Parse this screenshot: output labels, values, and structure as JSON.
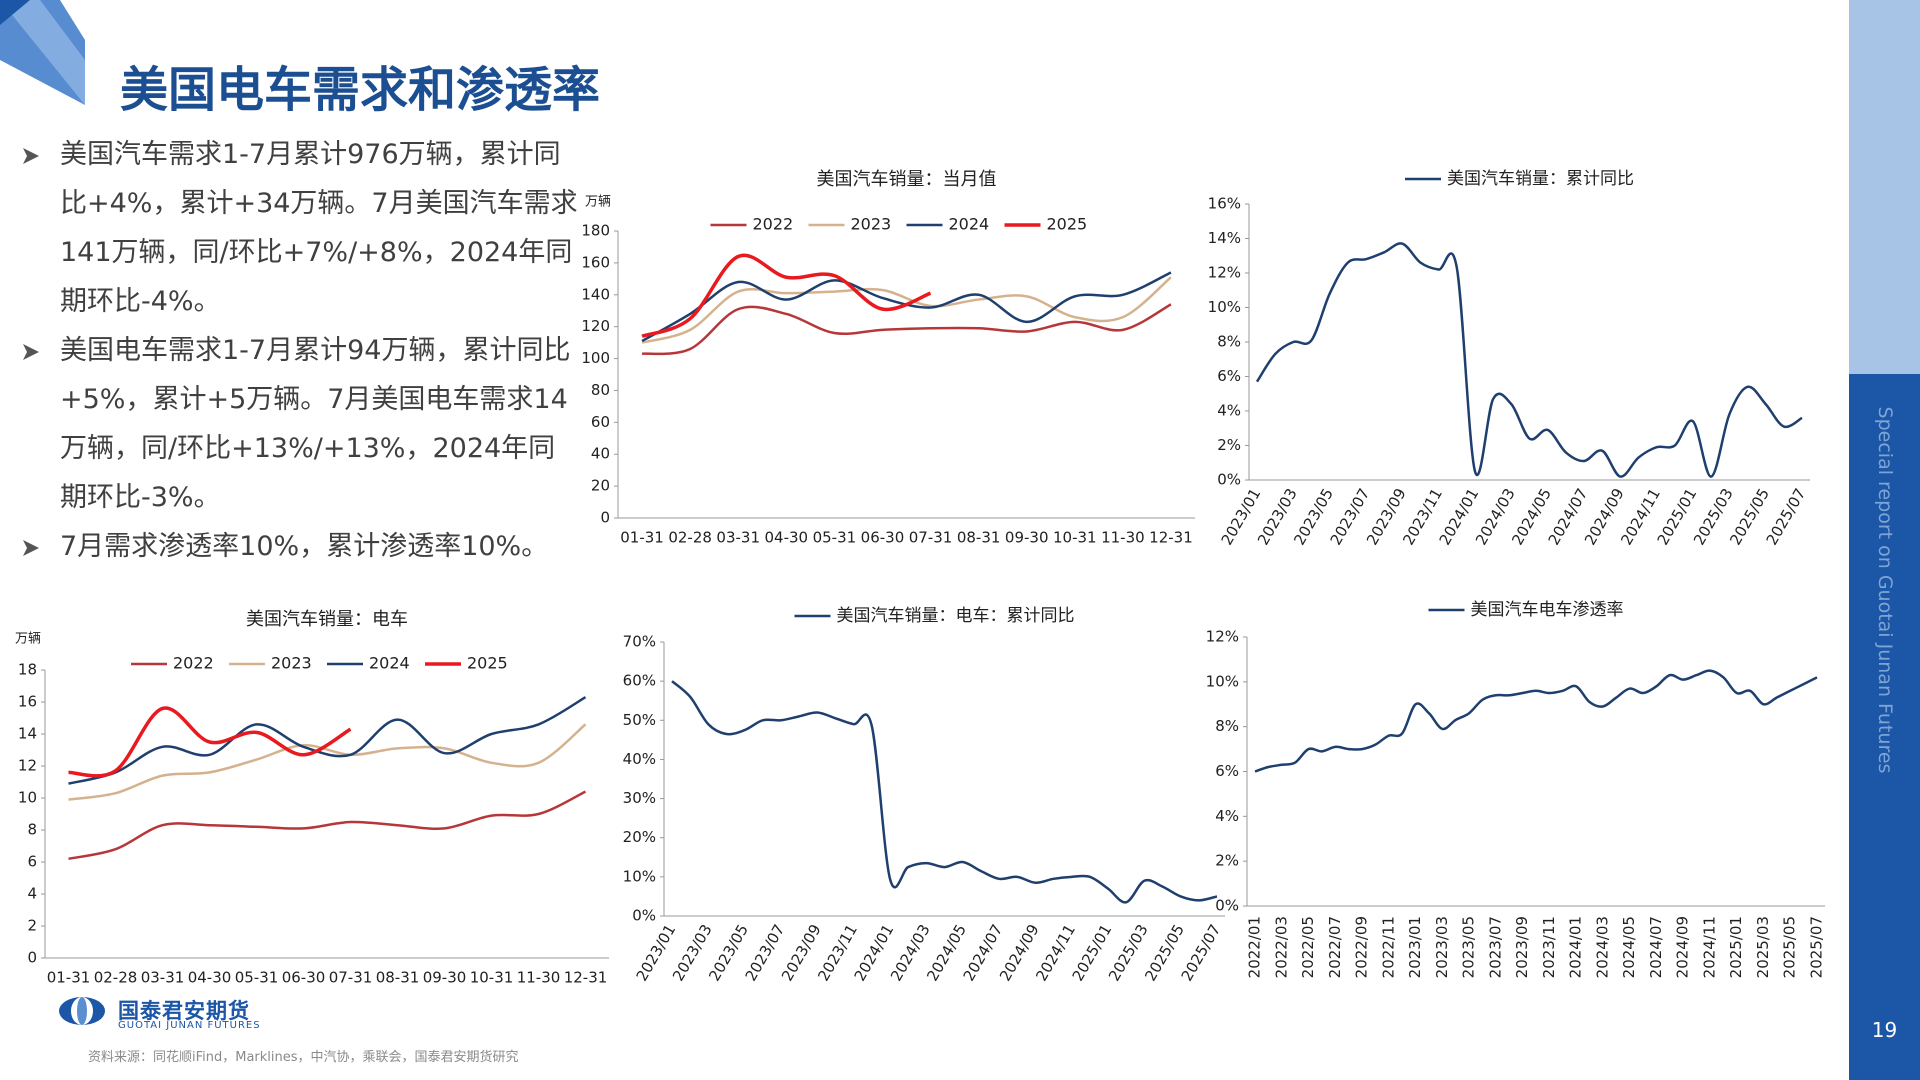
{
  "header": {
    "title": "美国电车需求和渗透率"
  },
  "bullets": [
    "美国汽车需求1-7月累计976万辆，累计同比+4%，累计+34万辆。7月美国汽车需求141万辆，同/环比+7%/+8%，2024年同期环比-4%。",
    "美国电车需求1-7月累计94万辆，累计同比+5%，累计+5万辆。7月美国电车需求14万辆，同/环比+13%/+13%，2024年同期环比-3%。",
    "7月需求渗透率10%，累计渗透率10%。"
  ],
  "chart_data": [
    {
      "type": "line",
      "title": "美国汽车销量：当月值",
      "y_label": "万辆",
      "legend": "top",
      "categories": [
        "01-31",
        "02-28",
        "03-31",
        "04-30",
        "05-31",
        "06-30",
        "07-31",
        "08-31",
        "09-30",
        "10-31",
        "11-30",
        "12-31"
      ],
      "series": [
        {
          "name": "2022",
          "color": "#b5373a",
          "values": [
            103,
            106,
            131,
            128,
            116,
            118,
            119,
            119,
            117,
            123,
            118,
            134
          ]
        },
        {
          "name": "2023",
          "color": "#d5b28e",
          "values": [
            110,
            118,
            142,
            141,
            142,
            143,
            133,
            137,
            139,
            126,
            126,
            151
          ]
        },
        {
          "name": "2024",
          "color": "#1f3f6e",
          "values": [
            111,
            128,
            148,
            137,
            149,
            138,
            132,
            140,
            123,
            139,
            140,
            154
          ]
        },
        {
          "name": "2025",
          "color": "#e8191f",
          "values": [
            114,
            125,
            164,
            151,
            152,
            131,
            141,
            null,
            null,
            null,
            null,
            null
          ]
        }
      ],
      "ylim": [
        0,
        180
      ],
      "yticks": [
        0,
        20,
        40,
        60,
        80,
        100,
        120,
        140,
        160,
        180
      ]
    },
    {
      "type": "line",
      "legend": "top",
      "categories": [
        "2023/01",
        null,
        "2023/03",
        null,
        "2023/05",
        null,
        "2023/07",
        null,
        "2023/09",
        null,
        "2023/11",
        null,
        "2024/01",
        null,
        "2024/03",
        null,
        "2024/05",
        null,
        "2024/07",
        null,
        "2024/09",
        null,
        "2024/11",
        null,
        "2025/01",
        null,
        "2025/03",
        null,
        "2025/05",
        null,
        "2025/07"
      ],
      "series": [
        {
          "name": "美国汽车销量：累计同比",
          "color": "#1f3f6e",
          "values": [
            5.7,
            7.3,
            8.0,
            8.1,
            10.8,
            12.6,
            12.8,
            13.2,
            13.7,
            12.6,
            12.2,
            12.3,
            0.5,
            4.7,
            4.4,
            2.4,
            2.9,
            1.6,
            1.1,
            1.7,
            0.2,
            1.3,
            1.9,
            2.0,
            3.4,
            0.2,
            3.8,
            5.4,
            4.4,
            3.1,
            3.6
          ]
        }
      ],
      "ylim": [
        0,
        16
      ],
      "yticks": [
        {
          "value": 0,
          "label": "0%"
        },
        {
          "value": 2,
          "label": "2%"
        },
        {
          "value": 4,
          "label": "4%"
        },
        {
          "value": 6,
          "label": "6%"
        },
        {
          "value": 8,
          "label": "8%"
        },
        {
          "value": 10,
          "label": "10%"
        },
        {
          "value": 12,
          "label": "12%"
        },
        {
          "value": 14,
          "label": "14%"
        },
        {
          "value": 16,
          "label": "16%"
        }
      ]
    },
    {
      "type": "line",
      "title": "美国汽车销量：电车",
      "y_label": "万辆",
      "legend": "top",
      "categories": [
        "01-31",
        "02-28",
        "03-31",
        "04-30",
        "05-31",
        "06-30",
        "07-31",
        "08-31",
        "09-30",
        "10-31",
        "11-30",
        "12-31"
      ],
      "series": [
        {
          "name": "2022",
          "color": "#b5373a",
          "values": [
            6.2,
            6.8,
            8.3,
            8.3,
            8.2,
            8.1,
            8.5,
            8.3,
            8.1,
            8.9,
            9.0,
            10.4
          ]
        },
        {
          "name": "2023",
          "color": "#d5b28e",
          "values": [
            9.9,
            10.3,
            11.4,
            11.6,
            12.4,
            13.3,
            12.7,
            13.1,
            13.1,
            12.2,
            12.2,
            14.6
          ]
        },
        {
          "name": "2024",
          "color": "#1f3f6e",
          "values": [
            10.9,
            11.6,
            13.2,
            12.7,
            14.6,
            13.2,
            12.7,
            14.9,
            12.8,
            14.0,
            14.6,
            16.3
          ]
        },
        {
          "name": "2025",
          "color": "#e8191f",
          "values": [
            11.6,
            11.7,
            15.6,
            13.5,
            14.1,
            12.7,
            14.3,
            null,
            null,
            null,
            null,
            null
          ]
        }
      ],
      "ylim": [
        0,
        18
      ],
      "yticks": [
        0,
        2,
        4,
        6,
        8,
        10,
        12,
        14,
        16,
        18
      ]
    },
    {
      "type": "line",
      "legend": "top",
      "categories": [
        "2023/01",
        null,
        "2023/03",
        null,
        "2023/05",
        null,
        "2023/07",
        null,
        "2023/09",
        null,
        "2023/11",
        null,
        "2024/01",
        null,
        "2024/03",
        null,
        "2024/05",
        null,
        "2024/07",
        null,
        "2024/09",
        null,
        "2024/11",
        null,
        "2025/01",
        null,
        "2025/03",
        null,
        "2025/05",
        null,
        "2025/07"
      ],
      "series": [
        {
          "name": "美国汽车销量：电车：累计同比",
          "color": "#1f3f6e",
          "values": [
            60,
            56,
            49,
            46.5,
            47.5,
            50,
            50,
            51,
            52,
            50.5,
            49,
            48.5,
            9.5,
            12.5,
            13.5,
            12.5,
            13.8,
            11.5,
            9.5,
            10,
            8.5,
            9.5,
            10,
            10,
            7,
            3.5,
            9,
            7.5,
            5,
            4,
            5
          ]
        }
      ],
      "ylim": [
        0,
        70
      ],
      "yticks": [
        {
          "value": 0,
          "label": "0%"
        },
        {
          "value": 10,
          "label": "10%"
        },
        {
          "value": 20,
          "label": "20%"
        },
        {
          "value": 30,
          "label": "30%"
        },
        {
          "value": 40,
          "label": "40%"
        },
        {
          "value": 50,
          "label": "50%"
        },
        {
          "value": 60,
          "label": "60%"
        },
        {
          "value": 70,
          "label": "70%"
        }
      ]
    },
    {
      "type": "line",
      "legend": "top",
      "categories": [
        "2022/01",
        null,
        "2022/03",
        null,
        "2022/05",
        null,
        "2022/07",
        null,
        "2022/09",
        null,
        "2022/11",
        null,
        "2023/01",
        null,
        "2023/03",
        null,
        "2023/05",
        null,
        "2023/07",
        null,
        "2023/09",
        null,
        "2023/11",
        null,
        "2024/01",
        null,
        "2024/03",
        null,
        "2024/05",
        null,
        "2024/07",
        null,
        "2024/09",
        null,
        "2024/11",
        null,
        "2025/01",
        null,
        "2025/03",
        null,
        "2025/05",
        null,
        "2025/07"
      ],
      "series": [
        {
          "name": "美国汽车电车渗透率",
          "color": "#1f3f6e",
          "values": [
            6.0,
            6.2,
            6.3,
            6.4,
            7.0,
            6.9,
            7.1,
            7.0,
            7.0,
            7.2,
            7.6,
            7.7,
            9.0,
            8.6,
            7.9,
            8.3,
            8.6,
            9.2,
            9.4,
            9.4,
            9.5,
            9.6,
            9.5,
            9.6,
            9.8,
            9.1,
            8.9,
            9.3,
            9.7,
            9.5,
            9.8,
            10.3,
            10.1,
            10.3,
            10.5,
            10.2,
            9.5,
            9.6,
            9.0,
            9.3,
            9.6,
            9.9,
            10.2
          ]
        }
      ],
      "ylim": [
        0,
        12
      ],
      "yticks": [
        {
          "value": 0,
          "label": "0%"
        },
        {
          "value": 2,
          "label": "2%"
        },
        {
          "value": 4,
          "label": "4%"
        },
        {
          "value": 6,
          "label": "6%"
        },
        {
          "value": 8,
          "label": "8%"
        },
        {
          "value": 10,
          "label": "10%"
        },
        {
          "value": 12,
          "label": "12%"
        }
      ]
    }
  ],
  "footer": {
    "logo_cn": "国泰君安期货",
    "logo_en": "GUOTAI JUNAN FUTURES",
    "source": "资料来源：同花顺iFind，Marklines，中汽协，乘联会，国泰君安期货研究"
  },
  "sidebar": {
    "text": "Special report on Guotai Junan Futures",
    "page_number": "19"
  }
}
